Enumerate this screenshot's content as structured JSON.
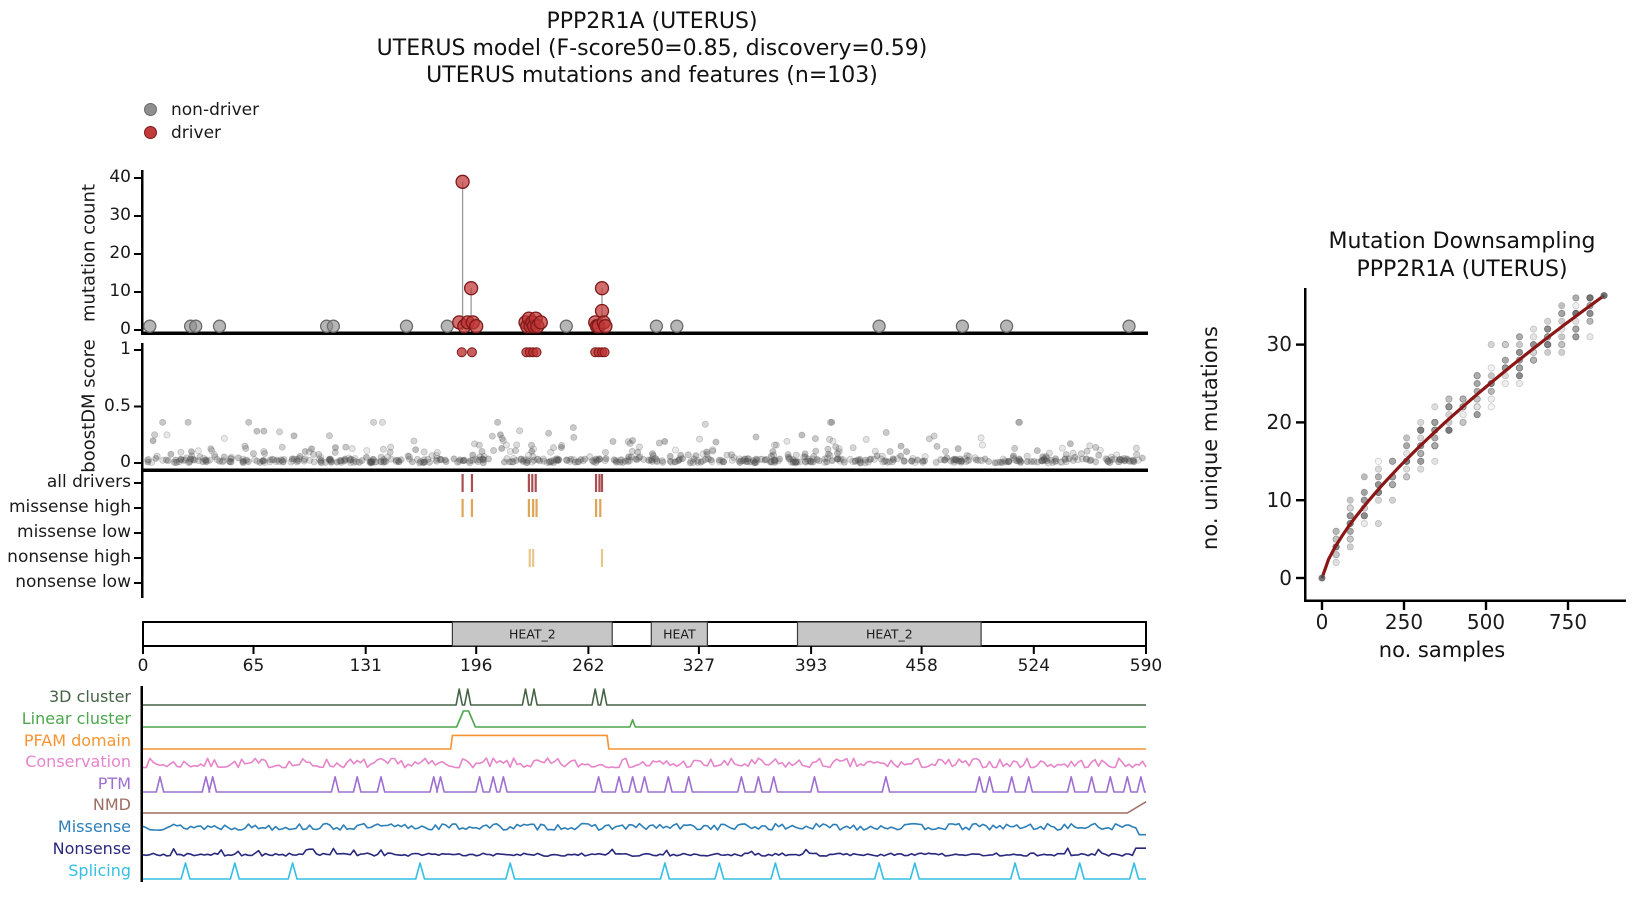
{
  "title": {
    "line1": "PPP2R1A (UTERUS)",
    "line2": "UTERUS model (F-score50=0.85, discovery=0.59)",
    "line3": "UTERUS mutations and features (n=103)"
  },
  "legend": {
    "items": [
      {
        "label": "non-driver",
        "color": "#8f8f8f",
        "edge": "#6b6b6b"
      },
      {
        "label": "driver",
        "color": "#c23b3b",
        "edge": "#7e1a1a"
      }
    ]
  },
  "labels": {
    "mutation_count": "mutation count",
    "boostdm_score": "boostDM score"
  },
  "colors": {
    "non_driver": "#8f8f8f",
    "non_driver_edge": "#6b6b6b",
    "driver": "#bf3434",
    "driver_edge": "#7e1a1a",
    "stem": "#9a9a9a",
    "noise_dot": "#555555",
    "spine": "#000000",
    "domain_box": "#c6c6c6",
    "downsampling_curve": "#8b1616",
    "downsampling_dot": "#666666"
  },
  "chart_data": [
    {
      "id": "mutation_count",
      "type": "scatter",
      "ylabel": "mutation count",
      "ylim": [
        0,
        42
      ],
      "yticks": [
        0,
        10,
        20,
        30,
        40
      ],
      "xlim": [
        0,
        590
      ],
      "stem_threshold": 4,
      "non_driver_points": [
        [
          4,
          1
        ],
        [
          28,
          1
        ],
        [
          31,
          1
        ],
        [
          45,
          1
        ],
        [
          108,
          1
        ],
        [
          112,
          1
        ],
        [
          155,
          1
        ],
        [
          179,
          1
        ],
        [
          249,
          1
        ],
        [
          302,
          1
        ],
        [
          314,
          1
        ],
        [
          433,
          1
        ],
        [
          482,
          1
        ],
        [
          508,
          1
        ],
        [
          580,
          1
        ]
      ],
      "driver_points": [
        [
          186,
          2
        ],
        [
          188,
          39
        ],
        [
          189,
          1
        ],
        [
          191,
          2
        ],
        [
          193,
          11
        ],
        [
          194,
          2
        ],
        [
          196,
          1
        ],
        [
          225,
          2
        ],
        [
          226,
          1
        ],
        [
          227,
          3
        ],
        [
          228,
          1
        ],
        [
          229,
          2
        ],
        [
          230,
          1
        ],
        [
          231,
          3
        ],
        [
          232,
          1
        ],
        [
          234,
          2
        ],
        [
          266,
          2
        ],
        [
          267,
          1
        ],
        [
          268,
          1
        ],
        [
          270,
          11
        ],
        [
          270,
          5
        ],
        [
          271,
          2
        ],
        [
          272,
          1
        ]
      ]
    },
    {
      "id": "boostdm_score",
      "type": "scatter",
      "ylabel": "boostDM score",
      "ylim": [
        0,
        1
      ],
      "yticks": [
        0,
        0.5,
        1
      ],
      "driver_top_x": [
        187.5,
        193.5,
        225.5,
        227.5,
        229.5,
        231.5,
        266,
        268,
        270,
        271.5
      ],
      "driver_top_y": 0.98,
      "noise": {
        "n": 680,
        "seed": 42,
        "x_range": [
          2,
          588
        ],
        "y_flat_frac": 0.55,
        "y_scale": 0.09,
        "y_max": 0.36
      }
    },
    {
      "id": "driver_tracks",
      "type": "table",
      "rows": [
        {
          "label": "all drivers",
          "color": "#a94f52",
          "ticks": [
            188,
            193.5,
            227,
            229,
            231,
            266.5,
            268.5,
            270
          ]
        },
        {
          "label": "missense high",
          "color": "#dfa557",
          "ticks": [
            188,
            193.5,
            227,
            229.5,
            231.5,
            266.5,
            269
          ]
        },
        {
          "label": "missense low",
          "color": "#dfa557",
          "ticks": []
        },
        {
          "label": "nonsense high",
          "color": "#e8c78c",
          "ticks": [
            227.5,
            229.5,
            270
          ]
        },
        {
          "label": "nonsense low",
          "color": "#e8c78c",
          "ticks": []
        }
      ]
    },
    {
      "id": "domains",
      "type": "table",
      "protein_length": 590,
      "xticks": [
        0,
        65,
        131,
        196,
        262,
        327,
        393,
        458,
        524,
        590
      ],
      "domains": [
        {
          "label": "HEAT_2",
          "start": 182,
          "end": 276
        },
        {
          "label": "HEAT",
          "start": 299,
          "end": 332
        },
        {
          "label": "HEAT_2",
          "start": 385,
          "end": 493
        }
      ]
    },
    {
      "id": "feature_tracks",
      "type": "line",
      "rows": [
        {
          "label": "3D cluster",
          "color": "#466346",
          "kind": "peaks",
          "peaks": [
            {
              "x": 186,
              "w": 1.8,
              "h": 1
            },
            {
              "x": 191,
              "w": 1.8,
              "h": 1
            },
            {
              "x": 225,
              "w": 1.8,
              "h": 1
            },
            {
              "x": 230,
              "w": 1.8,
              "h": 1
            },
            {
              "x": 266,
              "w": 1.8,
              "h": 1
            },
            {
              "x": 271,
              "w": 1.8,
              "h": 1
            }
          ]
        },
        {
          "label": "Linear cluster",
          "color": "#4ca64c",
          "kind": "plateau",
          "peaks": [
            {
              "x": 190,
              "w": 4,
              "h": 1,
              "flat": 3
            },
            {
              "x": 288,
              "w": 1.6,
              "h": 0.45,
              "flat": 0
            }
          ]
        },
        {
          "label": "PFAM domain",
          "color": "#f79432",
          "kind": "step",
          "start": 181,
          "end": 274,
          "h": 0.85
        },
        {
          "label": "Conservation",
          "color": "#e685ca",
          "kind": "noise",
          "seed": 7,
          "base": 0.15,
          "amp": 0.6,
          "pow": 1.6
        },
        {
          "label": "PTM",
          "color": "#9e6fd0",
          "kind": "spikes",
          "w": 2.2,
          "h": 0.95,
          "spikes": [
            10,
            37,
            41,
            113,
            126,
            140,
            171,
            175,
            198,
            206,
            212,
            268,
            280,
            288,
            295,
            309,
            321,
            352,
            362,
            371,
            395,
            437,
            492,
            498,
            511,
            521,
            546,
            558,
            569,
            579,
            587
          ]
        },
        {
          "label": "NMD",
          "color": "#9e6e62",
          "kind": "endrise",
          "rise_start": 579,
          "h": 0.7
        },
        {
          "label": "Missense",
          "color": "#2d7fb8",
          "kind": "noise",
          "seed": 13,
          "base": 0.3,
          "amp": 0.42,
          "pow": 1.0,
          "end_drop": true
        },
        {
          "label": "Nonsense",
          "color": "#28287d",
          "kind": "noise",
          "seed": 21,
          "base": 0.05,
          "amp": 0.2,
          "pow": 1.0,
          "bump_prob": 0.07,
          "end_spike": true
        },
        {
          "label": "Splicing",
          "color": "#35bfe3",
          "kind": "spikes",
          "w": 2.6,
          "h": 1,
          "spikes": [
            25,
            54,
            88,
            163,
            216,
            307,
            339,
            372,
            433,
            454,
            513,
            551,
            583
          ]
        }
      ]
    },
    {
      "id": "downsampling",
      "type": "scatter",
      "title_line1": "Mutation Downsampling",
      "title_line2": "PPP2R1A (UTERUS)",
      "xlabel": "no. samples",
      "ylabel": "no. unique mutations",
      "xticks": [
        0,
        250,
        500,
        750
      ],
      "yticks": [
        0,
        10,
        20,
        30
      ],
      "xlim": [
        0,
        880
      ],
      "ylim": [
        0,
        37
      ],
      "curve": {
        "x_end": 860,
        "y_end": 36.3,
        "exponent": 0.72
      },
      "scatter": {
        "column_step": 43,
        "n_columns": 19,
        "seed": 99,
        "spread": 3.2,
        "min_per_col": 10,
        "max_extra": 8
      },
      "end_point": [
        860,
        36.3
      ],
      "origin_point": [
        0,
        0
      ]
    }
  ]
}
